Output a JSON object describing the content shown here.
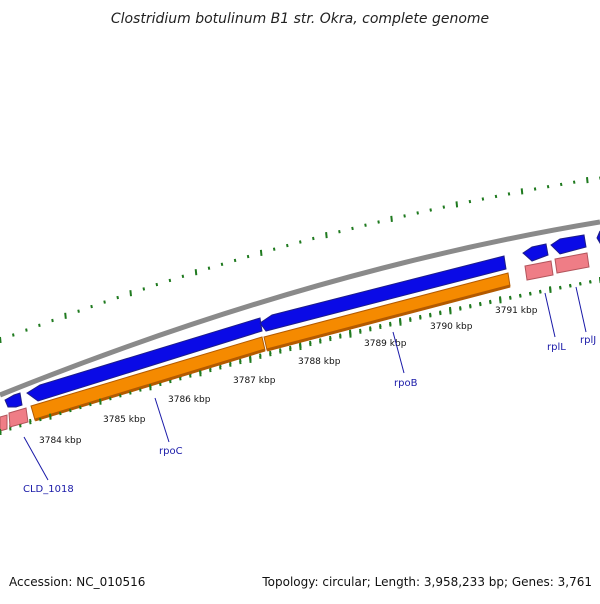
{
  "title": "Clostridium botulinum B1 str. Okra, complete genome",
  "footer": {
    "accession": "Accession: NC_010516",
    "summary": "Topology: circular; Length: 3,958,233 bp; Genes: 3,761"
  },
  "colors": {
    "backbone": "#8a8a8a",
    "forward_cds": "#0a0ae6",
    "forward_cds_edge": "#1d1d8a",
    "reverse_operon": "#f58a00",
    "reverse_operon_edge": "#b35a00",
    "reverse_gene": "#ef7d86",
    "reverse_gene_edge": "#b3555c",
    "gc_ticks": "#1f7a1f",
    "label": "#1a1aa8"
  },
  "scale_ticks": [
    {
      "label": "3784 kbp"
    },
    {
      "label": "3785 kbp"
    },
    {
      "label": "3786 kbp"
    },
    {
      "label": "3787 kbp"
    },
    {
      "label": "3788 kbp"
    },
    {
      "label": "3789 kbp"
    },
    {
      "label": "3790 kbp"
    },
    {
      "label": "3791 kbp"
    }
  ],
  "gene_labels": [
    {
      "name": "CLD_1018"
    },
    {
      "name": "rpoC"
    },
    {
      "name": "rpoB"
    },
    {
      "name": "rplL"
    },
    {
      "name": "rplJ"
    }
  ]
}
